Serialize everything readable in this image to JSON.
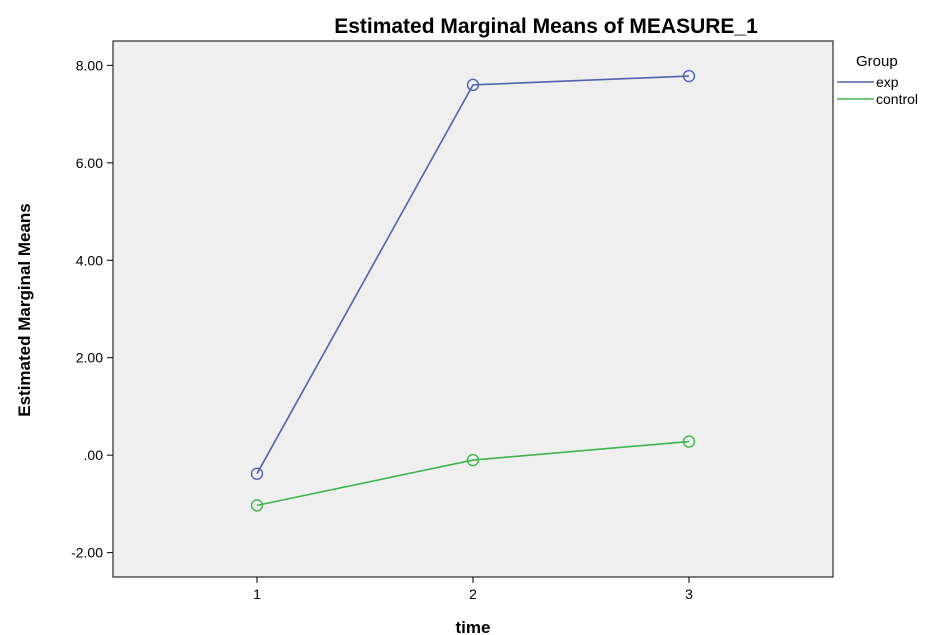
{
  "chart_data": {
    "type": "line",
    "title": "Estimated Marginal Means of MEASURE_1",
    "xlabel": "time",
    "ylabel": "Estimated Marginal Means",
    "categories": [
      "1",
      "2",
      "3"
    ],
    "ylim": [
      -2.5,
      8.5
    ],
    "yticks": [
      -2.0,
      0.0,
      2.0,
      4.0,
      6.0,
      8.0
    ],
    "ytick_labels": [
      "-2.00",
      ".00",
      "2.00",
      "4.00",
      "6.00",
      "8.00"
    ],
    "grid": false,
    "legend": {
      "title": "Group",
      "position": "right"
    },
    "series": [
      {
        "name": "exp",
        "color": "#4f63ad",
        "values": [
          -0.38,
          7.6,
          7.78
        ]
      },
      {
        "name": "control",
        "color": "#3db54a",
        "values": [
          -1.03,
          -0.1,
          0.28
        ]
      }
    ],
    "background": "#efefef",
    "marker": "open-circle"
  }
}
